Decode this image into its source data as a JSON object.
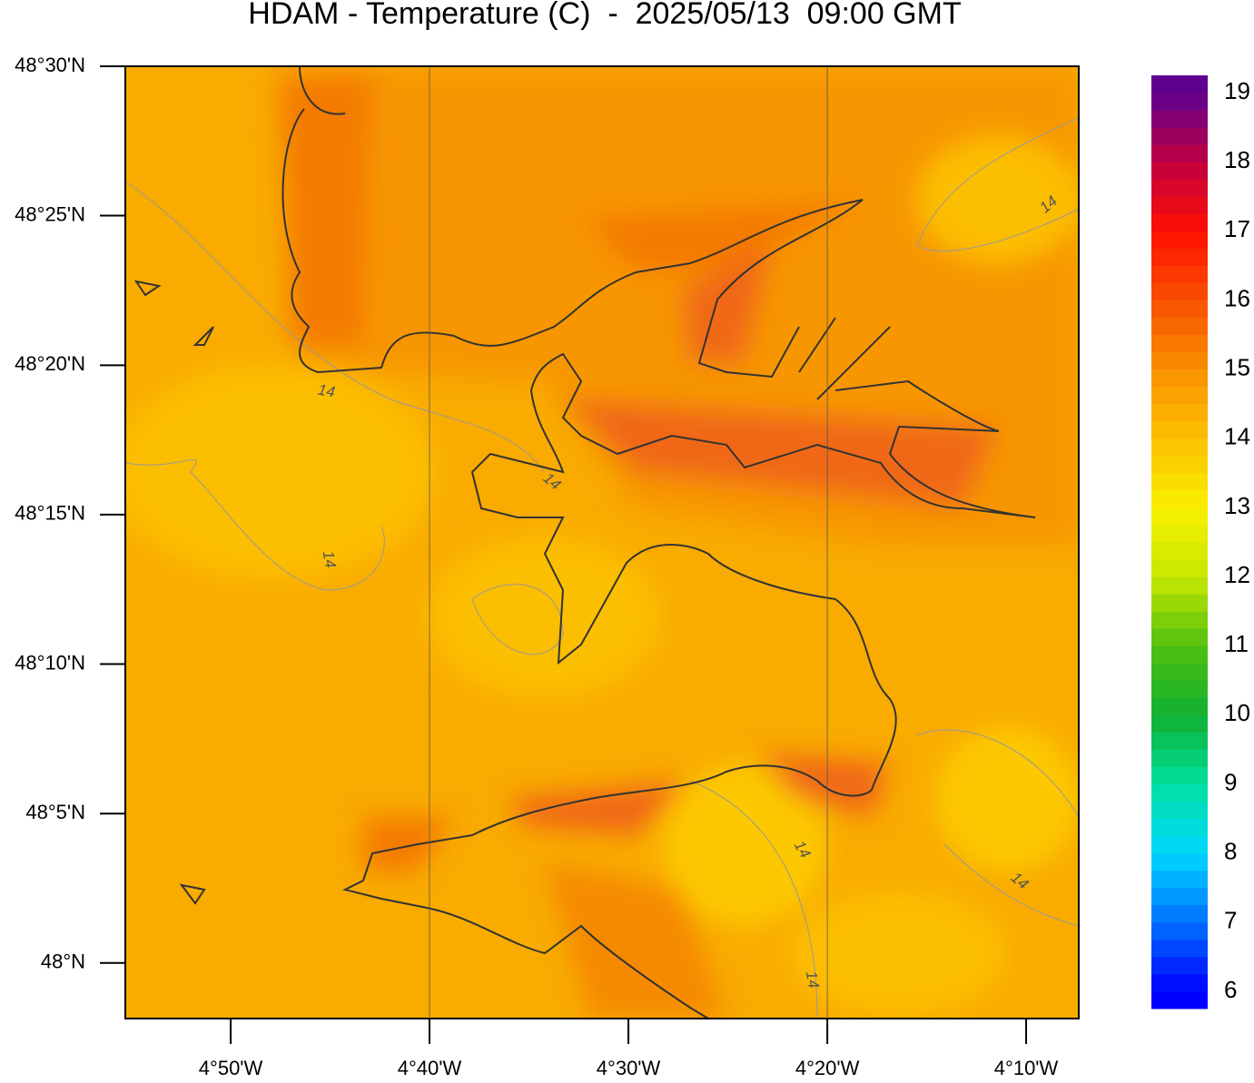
{
  "chart_data": {
    "type": "map",
    "title": "HDAM - Temperature (C)  -  2025/05/13  09:00 GMT",
    "xlim": [
      -4.9216,
      -4.1226
    ],
    "ylim": [
      47.969,
      48.5
    ],
    "xticks": [
      {
        "value": -4.8333,
        "label": "4°50'W"
      },
      {
        "value": -4.6667,
        "label": "4°40'W"
      },
      {
        "value": -4.5,
        "label": "4°30'W"
      },
      {
        "value": -4.3333,
        "label": "4°20'W"
      },
      {
        "value": -4.1667,
        "label": "4°10'W"
      }
    ],
    "yticks": [
      {
        "value": 48.5,
        "label": "48°30'N"
      },
      {
        "value": 48.4167,
        "label": "48°25'N"
      },
      {
        "value": 48.3333,
        "label": "48°20'N"
      },
      {
        "value": 48.25,
        "label": "48°15'N"
      },
      {
        "value": 48.1667,
        "label": "48°10'N"
      },
      {
        "value": 48.0833,
        "label": "48°5'N"
      },
      {
        "value": 48,
        "label": "48°N"
      }
    ],
    "xgrid": [
      -4.6667,
      -4.3333
    ],
    "colorbar": {
      "lim": [
        5.75,
        19.25
      ],
      "step": 0.25,
      "ticks": [
        6,
        7,
        8,
        9,
        10,
        11,
        12,
        13,
        14,
        15,
        16,
        17,
        18,
        19
      ],
      "anchors": [
        {
          "value": 6,
          "color": "#0000ff"
        },
        {
          "value": 7,
          "color": "#0070ff"
        },
        {
          "value": 8,
          "color": "#00d8ff"
        },
        {
          "value": 9,
          "color": "#00e0a0"
        },
        {
          "value": 10,
          "color": "#10b030"
        },
        {
          "value": 11,
          "color": "#50c010"
        },
        {
          "value": 12,
          "color": "#c8e800"
        },
        {
          "value": 13,
          "color": "#f8f000"
        },
        {
          "value": 14,
          "color": "#fcc000"
        },
        {
          "value": 15,
          "color": "#f89000"
        },
        {
          "value": 16,
          "color": "#f85000"
        },
        {
          "value": 17,
          "color": "#ff1000"
        },
        {
          "value": 18,
          "color": "#c00040"
        },
        {
          "value": 19,
          "color": "#600090"
        }
      ]
    },
    "contour_labels": [
      "14",
      "14",
      "14",
      "14",
      "14",
      "14",
      "14"
    ]
  }
}
